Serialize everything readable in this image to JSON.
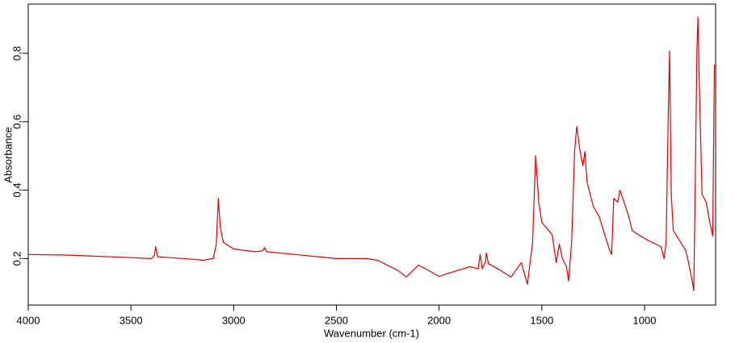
{
  "chart_data": {
    "type": "line",
    "x_label": "Wavenumber (cm-1)",
    "y_label": "Absorbance",
    "xlim": [
      4000,
      654
    ],
    "ylim": [
      0.064,
      0.944
    ],
    "xticks": [
      4000,
      3500,
      3000,
      2500,
      2000,
      1500,
      1000
    ],
    "yticks": [
      {
        "value": 0.2,
        "label": "0,2"
      },
      {
        "value": 0.4,
        "label": "0,4"
      },
      {
        "value": 0.6,
        "label": "0,6"
      },
      {
        "value": 0.8,
        "label": "0,8"
      }
    ],
    "color": "#e00000",
    "x": [
      4000,
      3800,
      3600,
      3400,
      3385,
      3380,
      3370,
      3200,
      3150,
      3100,
      3085,
      3075,
      3065,
      3050,
      3000,
      2900,
      2860,
      2850,
      2840,
      2700,
      2500,
      2350,
      2300,
      2200,
      2160,
      2100,
      2000,
      1950,
      1850,
      1810,
      1800,
      1790,
      1775,
      1770,
      1760,
      1700,
      1650,
      1600,
      1570,
      1545,
      1530,
      1515,
      1500,
      1450,
      1430,
      1415,
      1400,
      1380,
      1370,
      1355,
      1340,
      1330,
      1315,
      1300,
      1290,
      1280,
      1250,
      1220,
      1200,
      1170,
      1160,
      1150,
      1130,
      1120,
      1100,
      1080,
      1060,
      1020,
      980,
      920,
      905,
      895,
      885,
      878,
      870,
      860,
      800,
      790,
      770,
      760,
      752,
      745,
      740,
      732,
      720,
      700,
      680,
      668,
      660,
      654
    ],
    "values": [
      0.212,
      0.21,
      0.205,
      0.2,
      0.21,
      0.235,
      0.205,
      0.198,
      0.195,
      0.2,
      0.24,
      0.376,
      0.29,
      0.247,
      0.228,
      0.22,
      0.222,
      0.232,
      0.22,
      0.212,
      0.2,
      0.2,
      0.195,
      0.165,
      0.146,
      0.181,
      0.148,
      0.158,
      0.176,
      0.17,
      0.212,
      0.17,
      0.19,
      0.216,
      0.185,
      0.165,
      0.146,
      0.188,
      0.125,
      0.247,
      0.501,
      0.365,
      0.306,
      0.27,
      0.188,
      0.242,
      0.2,
      0.176,
      0.134,
      0.247,
      0.518,
      0.586,
      0.518,
      0.471,
      0.513,
      0.424,
      0.353,
      0.322,
      0.282,
      0.224,
      0.212,
      0.376,
      0.365,
      0.4,
      0.365,
      0.329,
      0.282,
      0.266,
      0.252,
      0.235,
      0.2,
      0.247,
      0.6,
      0.807,
      0.388,
      0.282,
      0.224,
      0.2,
      0.141,
      0.106,
      0.482,
      0.812,
      0.906,
      0.671,
      0.388,
      0.365,
      0.299,
      0.266,
      0.765,
      0.765
    ]
  }
}
